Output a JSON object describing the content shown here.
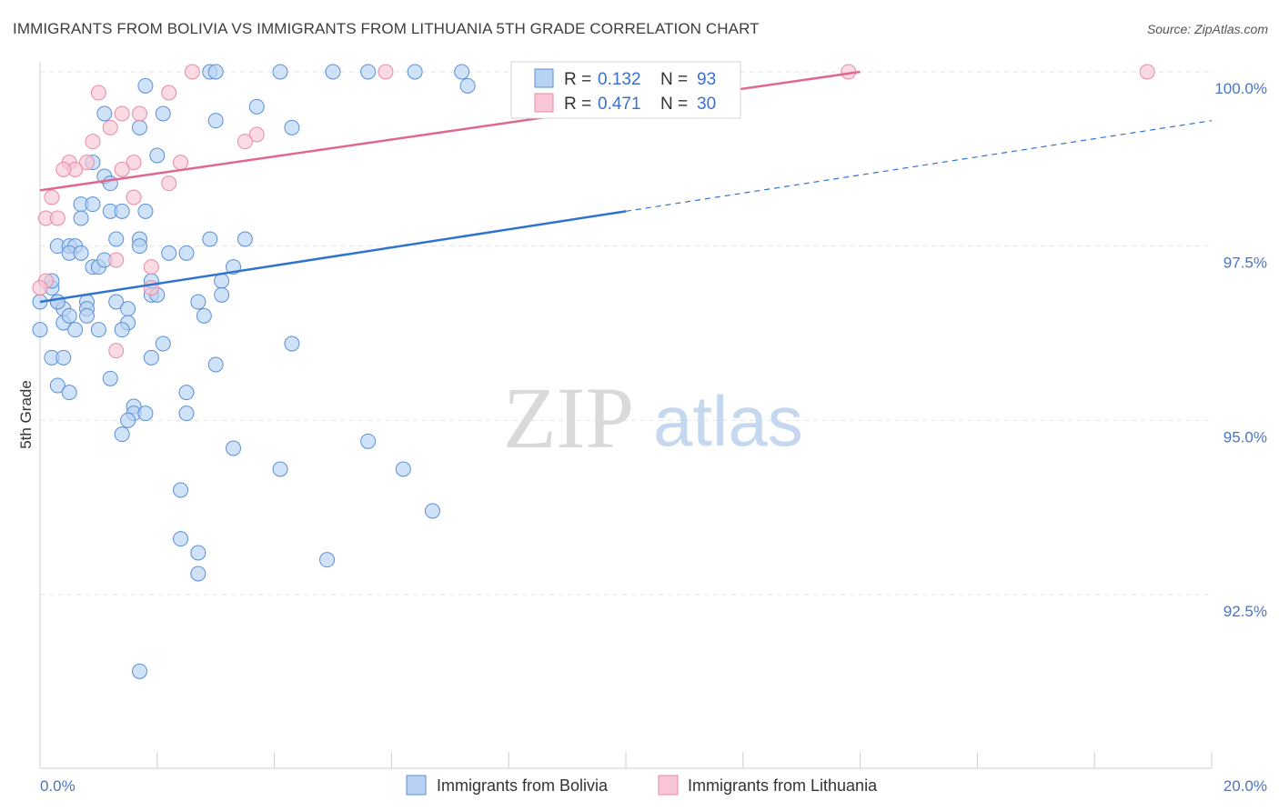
{
  "title": "IMMIGRANTS FROM BOLIVIA VS IMMIGRANTS FROM LITHUANIA 5TH GRADE CORRELATION CHART",
  "source": "Source: ZipAtlas.com",
  "watermark": {
    "zip": "ZIP",
    "atlas": "atlas"
  },
  "colors": {
    "blue_fill": "#b7d2f2",
    "blue_stroke": "#5b8fd6",
    "blue_line": "#2f72d0",
    "pink_fill": "#f8c6d4",
    "pink_stroke": "#e98aa6",
    "pink_line": "#e0678f",
    "grid": "#e3e3e3",
    "tick_text": "#4a74c6"
  },
  "legend": {
    "rows": [
      {
        "r_label": "R =",
        "r_value": "0.132",
        "n_label": "N =",
        "n_value": "93"
      },
      {
        "r_label": "R =",
        "r_value": "0.471",
        "n_label": "N =",
        "n_value": "30"
      }
    ]
  },
  "chart_data": {
    "type": "scatter",
    "title": "IMMIGRANTS FROM BOLIVIA VS IMMIGRANTS FROM LITHUANIA 5TH GRADE CORRELATION CHART",
    "xlabel": "",
    "ylabel": "5th Grade",
    "xlim": [
      0,
      20
    ],
    "ylim": [
      90.0,
      100.3
    ],
    "x_tick_labels": [
      "0.0%",
      "20.0%"
    ],
    "y_ticks": [
      92.5,
      95.0,
      97.5,
      100.0
    ],
    "y_tick_labels": [
      "92.5%",
      "95.0%",
      "97.5%",
      "100.0%"
    ],
    "series": [
      {
        "name": "Immigrants from Bolivia",
        "color": "blue",
        "R": 0.132,
        "N": 93,
        "trend": {
          "x0": 0,
          "y0": 96.7,
          "x1": 10,
          "y1": 98.0,
          "dash_to_x": 20,
          "dash_to_y": 99.3
        },
        "points": [
          [
            1.8,
            99.8
          ],
          [
            2.9,
            100.0
          ],
          [
            3.0,
            100.0
          ],
          [
            4.1,
            100.0
          ],
          [
            5.0,
            100.0
          ],
          [
            5.6,
            100.0
          ],
          [
            6.4,
            100.0
          ],
          [
            7.2,
            100.0
          ],
          [
            7.3,
            99.8
          ],
          [
            1.1,
            99.4
          ],
          [
            2.1,
            99.4
          ],
          [
            3.0,
            99.3
          ],
          [
            3.7,
            99.5
          ],
          [
            4.3,
            99.2
          ],
          [
            1.7,
            99.2
          ],
          [
            2.0,
            98.8
          ],
          [
            0.9,
            98.7
          ],
          [
            1.1,
            98.5
          ],
          [
            1.2,
            98.4
          ],
          [
            0.7,
            98.1
          ],
          [
            0.9,
            98.1
          ],
          [
            1.2,
            98.0
          ],
          [
            1.4,
            98.0
          ],
          [
            1.8,
            98.0
          ],
          [
            0.7,
            97.9
          ],
          [
            0.3,
            97.5
          ],
          [
            0.5,
            97.5
          ],
          [
            0.6,
            97.5
          ],
          [
            0.5,
            97.4
          ],
          [
            0.7,
            97.4
          ],
          [
            1.3,
            97.6
          ],
          [
            1.7,
            97.6
          ],
          [
            2.9,
            97.6
          ],
          [
            3.5,
            97.6
          ],
          [
            2.2,
            97.4
          ],
          [
            2.5,
            97.4
          ],
          [
            0.9,
            97.2
          ],
          [
            1.0,
            97.2
          ],
          [
            1.1,
            97.3
          ],
          [
            1.9,
            97.0
          ],
          [
            3.1,
            97.0
          ],
          [
            0.2,
            96.9
          ],
          [
            1.9,
            96.8
          ],
          [
            3.1,
            96.8
          ],
          [
            0.3,
            96.7
          ],
          [
            0.8,
            96.7
          ],
          [
            1.3,
            96.7
          ],
          [
            1.5,
            96.6
          ],
          [
            2.7,
            96.7
          ],
          [
            0.4,
            96.6
          ],
          [
            0.8,
            96.6
          ],
          [
            0.8,
            96.5
          ],
          [
            0.4,
            96.4
          ],
          [
            1.5,
            96.4
          ],
          [
            2.8,
            96.5
          ],
          [
            0.0,
            96.3
          ],
          [
            1.0,
            96.3
          ],
          [
            1.4,
            96.3
          ],
          [
            0.6,
            96.3
          ],
          [
            2.1,
            96.1
          ],
          [
            4.3,
            96.1
          ],
          [
            0.2,
            95.9
          ],
          [
            0.4,
            95.9
          ],
          [
            1.9,
            95.9
          ],
          [
            3.0,
            95.8
          ],
          [
            1.2,
            95.6
          ],
          [
            0.3,
            95.5
          ],
          [
            0.5,
            95.4
          ],
          [
            2.5,
            95.4
          ],
          [
            1.6,
            95.2
          ],
          [
            1.6,
            95.1
          ],
          [
            1.8,
            95.1
          ],
          [
            2.5,
            95.1
          ],
          [
            1.5,
            95.0
          ],
          [
            1.4,
            94.8
          ],
          [
            5.6,
            94.7
          ],
          [
            3.3,
            94.6
          ],
          [
            6.2,
            94.3
          ],
          [
            4.1,
            94.3
          ],
          [
            2.4,
            94.0
          ],
          [
            6.7,
            93.7
          ],
          [
            2.4,
            93.3
          ],
          [
            2.7,
            93.1
          ],
          [
            4.9,
            93.0
          ],
          [
            2.7,
            92.8
          ],
          [
            1.7,
            91.4
          ],
          [
            0.0,
            96.7
          ],
          [
            0.2,
            97.0
          ],
          [
            0.3,
            96.7
          ],
          [
            1.7,
            97.5
          ],
          [
            3.3,
            97.2
          ],
          [
            0.5,
            96.5
          ],
          [
            2.0,
            96.8
          ]
        ]
      },
      {
        "name": "Immigrants from Lithuania",
        "color": "pink",
        "R": 0.471,
        "N": 30,
        "trend": {
          "x0": 0,
          "y0": 98.3,
          "x1": 14.0,
          "y1": 100.0
        },
        "points": [
          [
            2.6,
            100.0
          ],
          [
            5.9,
            100.0
          ],
          [
            13.8,
            100.0
          ],
          [
            18.9,
            100.0
          ],
          [
            1.0,
            99.7
          ],
          [
            2.2,
            99.7
          ],
          [
            1.4,
            99.4
          ],
          [
            1.7,
            99.4
          ],
          [
            1.2,
            99.2
          ],
          [
            3.7,
            99.1
          ],
          [
            3.5,
            99.0
          ],
          [
            0.9,
            99.0
          ],
          [
            1.6,
            98.7
          ],
          [
            2.4,
            98.7
          ],
          [
            0.5,
            98.7
          ],
          [
            0.8,
            98.7
          ],
          [
            0.6,
            98.6
          ],
          [
            0.4,
            98.6
          ],
          [
            1.4,
            98.6
          ],
          [
            2.2,
            98.4
          ],
          [
            0.2,
            98.2
          ],
          [
            1.6,
            98.2
          ],
          [
            0.1,
            97.9
          ],
          [
            0.3,
            97.9
          ],
          [
            1.3,
            97.3
          ],
          [
            1.9,
            97.2
          ],
          [
            0.1,
            97.0
          ],
          [
            0.0,
            96.9
          ],
          [
            1.9,
            96.9
          ],
          [
            1.3,
            96.0
          ]
        ]
      }
    ]
  },
  "bottom_legend": [
    {
      "label": "Immigrants from Bolivia",
      "color": "blue"
    },
    {
      "label": "Immigrants from Lithuania",
      "color": "pink"
    }
  ]
}
